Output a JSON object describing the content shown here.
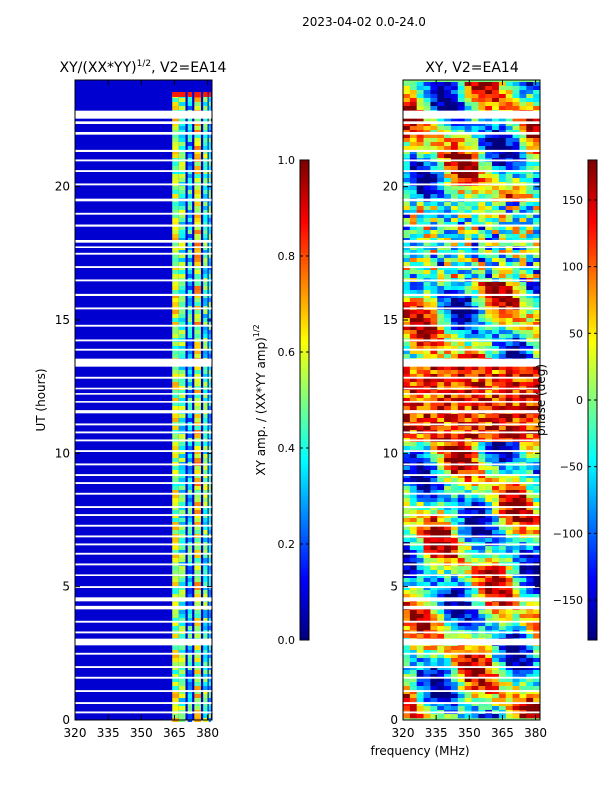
{
  "suptitle": "2023-04-02 0.0-24.0",
  "shared_xlabel": "frequency (MHz)",
  "colors": {
    "jet": [
      "#00007f",
      "#0000ff",
      "#007fff",
      "#00ffff",
      "#7fff7f",
      "#ffff00",
      "#ff7f00",
      "#ff0000",
      "#7f0000"
    ],
    "flag_blank": "#ffffff",
    "background": "#ffffff"
  },
  "chart_data": [
    {
      "type": "heatmap",
      "title_main": "XY/(XX*YY)",
      "title_sup": "1/2",
      "title_rest": ", V2=EA14",
      "xlabel": "",
      "ylabel": "UT (hours)",
      "x_range": [
        320,
        382
      ],
      "y_range": [
        0,
        24
      ],
      "x_ticks": [
        320,
        335,
        350,
        365,
        380
      ],
      "y_ticks": [
        0,
        5,
        10,
        15,
        20
      ],
      "colorbar": {
        "label_main": "XY amp. / (XX*YY amp)",
        "label_sup": "1/2",
        "range": [
          0.0,
          1.0
        ],
        "ticks": [
          "0.0",
          "0.2",
          "0.4",
          "0.6",
          "0.8",
          "1.0"
        ]
      },
      "description_values": {
        "background_value": 0.05,
        "bright_channels_MHz": [
          [
            364,
            367,
            0.55
          ],
          [
            367,
            370,
            0.45
          ],
          [
            371,
            373,
            0.35
          ],
          [
            374,
            377,
            0.6
          ],
          [
            378,
            380,
            0.45
          ],
          [
            380.5,
            381.5,
            0.4
          ]
        ]
      }
    },
    {
      "type": "heatmap",
      "title_main": "XY, V2=EA14",
      "title_sup": "",
      "title_rest": "",
      "xlabel": "",
      "ylabel": "",
      "x_range": [
        320,
        382
      ],
      "y_range": [
        0,
        24
      ],
      "x_ticks": [
        320,
        335,
        350,
        365,
        380
      ],
      "y_ticks": [
        0,
        5,
        10,
        15,
        20
      ],
      "colorbar": {
        "label_main": "phase (deg)",
        "label_sup": "",
        "range": [
          -180,
          180
        ],
        "ticks": [
          "−150",
          "−100",
          "−50",
          "0",
          "50",
          "100",
          "150"
        ],
        "tick_values": [
          -150,
          -100,
          -50,
          0,
          50,
          100,
          150
        ]
      }
    }
  ],
  "flagged_time_bands_hours": [
    [
      22.55,
      22.85
    ],
    [
      22.35,
      22.45
    ],
    [
      21.95,
      22.05
    ],
    [
      21.3,
      21.38
    ],
    [
      20.95,
      21.02
    ],
    [
      20.55,
      20.62
    ],
    [
      20.05,
      20.12
    ],
    [
      19.45,
      19.55
    ],
    [
      18.95,
      19.02
    ],
    [
      18.5,
      18.58
    ],
    [
      17.9,
      18.0
    ],
    [
      17.7,
      17.76
    ],
    [
      17.45,
      17.52
    ],
    [
      16.95,
      17.02
    ],
    [
      16.45,
      16.52
    ],
    [
      15.9,
      15.98
    ],
    [
      15.4,
      15.47
    ],
    [
      14.75,
      14.82
    ],
    [
      14.2,
      14.27
    ],
    [
      13.85,
      13.92
    ],
    [
      13.25,
      13.55
    ],
    [
      12.8,
      12.87
    ],
    [
      12.4,
      12.46
    ],
    [
      12.2,
      12.26
    ],
    [
      11.9,
      11.96
    ],
    [
      11.5,
      11.62
    ],
    [
      11.05,
      11.12
    ],
    [
      10.75,
      10.82
    ],
    [
      10.45,
      10.52
    ],
    [
      10.05,
      10.12
    ],
    [
      9.55,
      9.62
    ],
    [
      9.15,
      9.22
    ],
    [
      8.85,
      8.92
    ],
    [
      8.45,
      8.52
    ],
    [
      7.95,
      8.02
    ],
    [
      7.65,
      7.72
    ],
    [
      7.25,
      7.32
    ],
    [
      6.85,
      6.92
    ],
    [
      6.55,
      6.62
    ],
    [
      6.2,
      6.27
    ],
    [
      5.8,
      5.87
    ],
    [
      5.4,
      5.46
    ],
    [
      4.95,
      5.02
    ],
    [
      4.45,
      4.6
    ],
    [
      4.15,
      4.28
    ],
    [
      3.65,
      3.72
    ],
    [
      3.25,
      3.32
    ],
    [
      2.8,
      3.05
    ],
    [
      2.45,
      2.52
    ],
    [
      1.95,
      2.02
    ],
    [
      1.55,
      1.62
    ],
    [
      1.05,
      1.12
    ],
    [
      0.6,
      0.67
    ],
    [
      0.25,
      0.32
    ]
  ]
}
